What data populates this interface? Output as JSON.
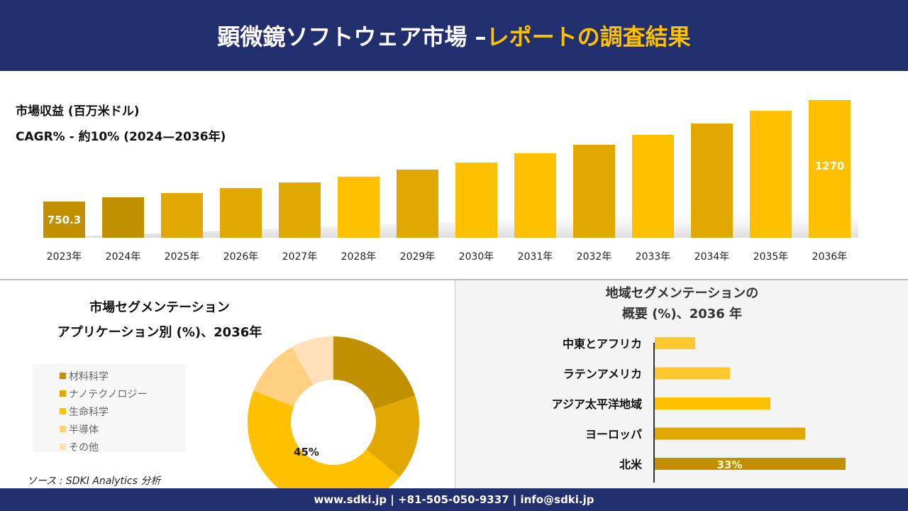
{
  "header": {
    "title_main": "顕微鏡ソフトウェア市場 –",
    "title_accent": "レポートの調査結果"
  },
  "colors": {
    "navy": "#222f6e",
    "accent": "#ffc000",
    "c1": "#c09000",
    "c2": "#e0a800",
    "c3": "#ffc000",
    "c4": "#ffd080",
    "c5": "#ffe0b8"
  },
  "chart_data": [
    {
      "type": "bar",
      "title": "市場収益 (百万米ドル)",
      "subtitle": "CAGR% - 約10% (2024—2036年)",
      "categories": [
        "2023年",
        "2024年",
        "2025年",
        "2026年",
        "2027年",
        "2028年",
        "2029年",
        "2030年",
        "2031年",
        "2032年",
        "2033年",
        "2034年",
        "2035年",
        "2036年"
      ],
      "values": [
        750.3,
        772,
        794,
        819,
        848,
        878,
        914,
        950,
        998,
        1041,
        1092,
        1150,
        1215,
        1270
      ],
      "data_labels": {
        "0": "750.3",
        "13": "1270"
      }
    },
    {
      "type": "pie",
      "variant": "donut",
      "title_line1": "市場セグメンテーション",
      "title_line2": "アプリケーション別 (%)、2036年",
      "labels": [
        "材料科学",
        "ナノテクノロジー",
        "生命科学",
        "半導体",
        "その他"
      ],
      "values": [
        20,
        16,
        45,
        11,
        8
      ],
      "data_labels": {
        "2": "45%"
      },
      "legend": "left"
    },
    {
      "type": "bar",
      "orientation": "horizontal",
      "title_line1": "地域セグメンテーションの",
      "title_line2": "概要 (%)、2036 年",
      "categories": [
        "中東とアフリカ",
        "ラテンアメリカ",
        "アジア太平洋地域",
        "ヨーロッパ",
        "北米"
      ],
      "values": [
        7,
        13,
        20,
        26,
        33
      ],
      "data_labels": {
        "4": "33%"
      }
    }
  ],
  "source": "ソース : SDKI Analytics 分析",
  "footer": "www.sdki.jp | +81-505-050-9337 | info@sdki.jp"
}
